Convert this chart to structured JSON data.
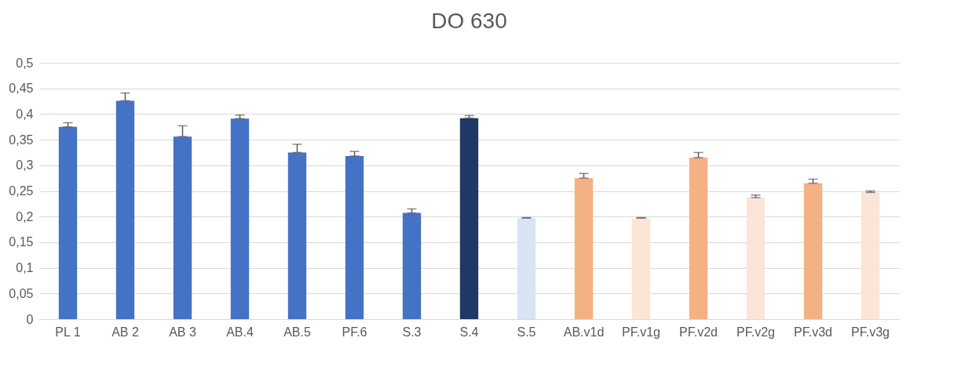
{
  "chart_data": {
    "type": "bar",
    "title": "DO 630",
    "categories": [
      "PL 1",
      "AB 2",
      "AB 3",
      "AB.4",
      "AB.5",
      "PF.6",
      "S.3",
      "S.4",
      "S.5",
      "AB.v1d",
      "PF.v1g",
      "PF.v2d",
      "PF.v2g",
      "PF.v3d",
      "PF.v3g"
    ],
    "values": [
      0.375,
      0.426,
      0.356,
      0.391,
      0.325,
      0.318,
      0.207,
      0.392,
      0.197,
      0.275,
      0.197,
      0.315,
      0.237,
      0.265,
      0.247
    ],
    "colors": [
      "#4472c4",
      "#4472c4",
      "#4472c4",
      "#4472c4",
      "#4472c4",
      "#4472c4",
      "#4472c4",
      "#203864",
      "#dae3f3",
      "#f4b183",
      "#fbe5d6",
      "#f4b183",
      "#fbe5d6",
      "#f4b183",
      "#fbe5d6"
    ],
    "errors": [
      [
        0.375,
        0.383
      ],
      [
        0.426,
        0.441
      ],
      [
        0.356,
        0.377
      ],
      [
        0.391,
        0.398
      ],
      [
        0.325,
        0.341
      ],
      [
        0.318,
        0.327
      ],
      [
        0.207,
        0.215
      ],
      [
        0.392,
        0.397
      ],
      [
        0.197,
        0.198
      ],
      [
        0.275,
        0.284
      ],
      [
        0.197,
        0.198
      ],
      [
        0.315,
        0.325
      ],
      [
        0.237,
        0.242
      ],
      [
        0.265,
        0.273
      ],
      [
        0.247,
        0.25
      ]
    ],
    "ylim": [
      0,
      0.5
    ],
    "yticks": [
      0,
      {
        "value": 0.05,
        "label": "0,05"
      },
      {
        "value": 0.1,
        "label": "0,1"
      },
      {
        "value": 0.15,
        "label": "0,15"
      },
      {
        "value": 0.2,
        "label": "0,2"
      },
      {
        "value": 0.25,
        "label": "0,25"
      },
      {
        "value": 0.3,
        "label": "0,3"
      },
      {
        "value": 0.35,
        "label": "0,35"
      },
      {
        "value": 0.4,
        "label": "0,4"
      },
      {
        "value": 0.45,
        "label": "0,45"
      },
      {
        "value": 0.5,
        "label": "0,5"
      }
    ],
    "grid": true
  }
}
